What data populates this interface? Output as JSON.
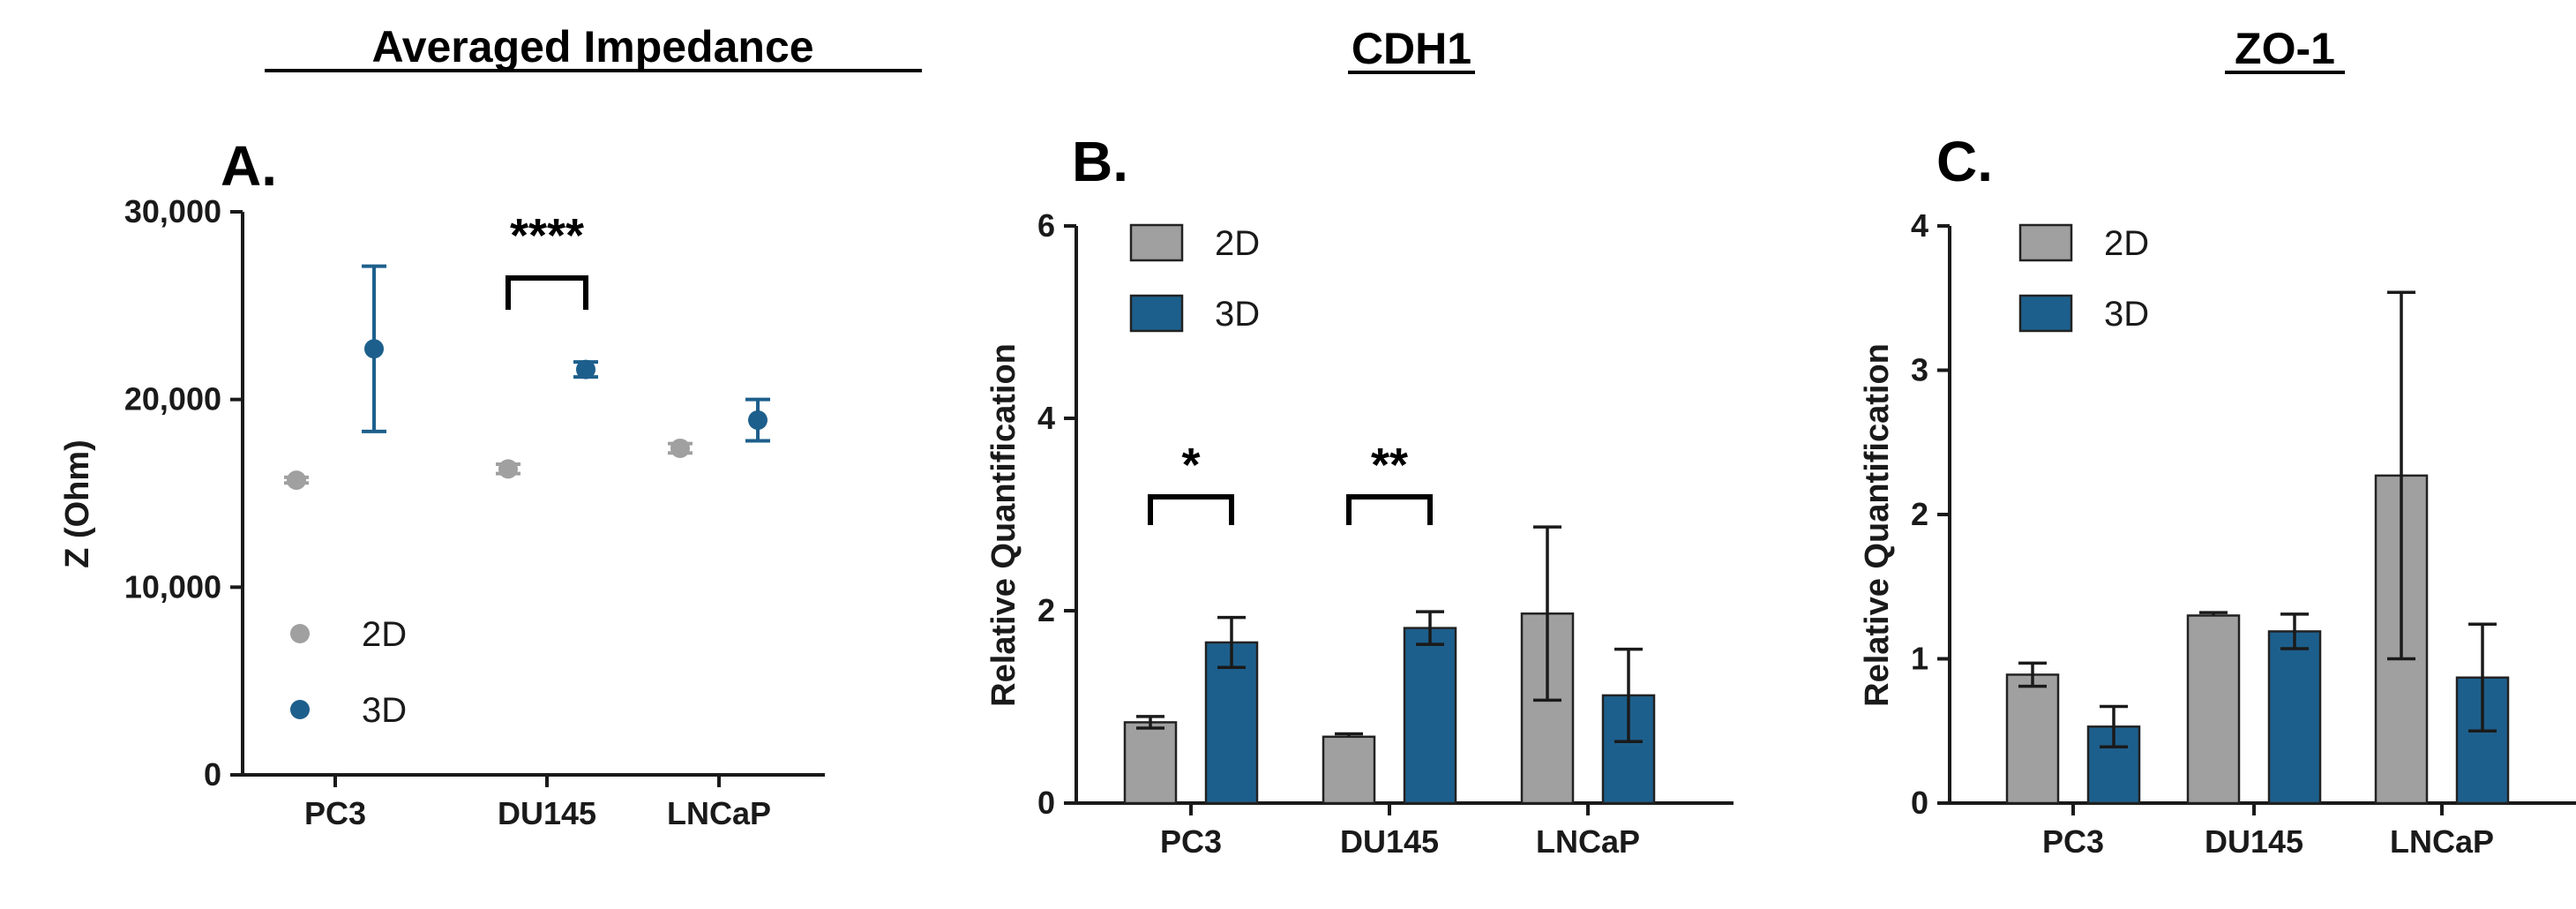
{
  "colors": {
    "2D": "#a0a0a0",
    "3D": "#1d5f8c",
    "axis": "#1a1a1a"
  },
  "chart_data": [
    {
      "type": "scatter",
      "panel_label": "A.",
      "title": "Averaged Impedance",
      "xlabel": "",
      "ylabel": "Z (Ohm)",
      "ylim": [
        0,
        30000
      ],
      "yticks": [
        0,
        10000,
        20000,
        30000
      ],
      "ytick_labels": [
        "0",
        "10,000",
        "20,000",
        "30,000"
      ],
      "categories": [
        "PC3",
        "DU145",
        "LNCaP"
      ],
      "series": [
        {
          "name": "2D",
          "values": [
            15700,
            16300,
            17400
          ],
          "errors": [
            150,
            250,
            250
          ]
        },
        {
          "name": "3D",
          "values": [
            22700,
            21600,
            18900
          ],
          "errors": [
            4400,
            400,
            1100
          ]
        }
      ],
      "legend": {
        "position": "bottom-left",
        "entries": [
          "2D",
          "3D"
        ]
      },
      "annotations": [
        {
          "text": "****",
          "category": "DU145"
        }
      ]
    },
    {
      "type": "bar",
      "panel_label": "B.",
      "title": "CDH1",
      "xlabel": "",
      "ylabel": "Relative Quantification",
      "ylim": [
        0,
        6
      ],
      "yticks": [
        0,
        2,
        4,
        6
      ],
      "ytick_labels": [
        "0",
        "2",
        "4",
        "6"
      ],
      "categories": [
        "PC3",
        "DU145",
        "LNCaP"
      ],
      "series": [
        {
          "name": "2D",
          "values": [
            0.84,
            0.69,
            1.97
          ],
          "errors": [
            0.06,
            0.03,
            0.9
          ]
        },
        {
          "name": "3D",
          "values": [
            1.67,
            1.82,
            1.12
          ],
          "errors": [
            0.26,
            0.17,
            0.48
          ]
        }
      ],
      "legend": {
        "position": "top-left",
        "entries": [
          "2D",
          "3D"
        ]
      },
      "annotations": [
        {
          "text": "*",
          "category": "PC3"
        },
        {
          "text": "**",
          "category": "DU145"
        }
      ]
    },
    {
      "type": "bar",
      "panel_label": "C.",
      "title": "ZO-1",
      "xlabel": "",
      "ylabel": "Relative Quantification",
      "ylim": [
        0,
        4
      ],
      "yticks": [
        0,
        1,
        2,
        3,
        4
      ],
      "ytick_labels": [
        "0",
        "1",
        "2",
        "3",
        "4"
      ],
      "categories": [
        "PC3",
        "DU145",
        "LNCaP"
      ],
      "series": [
        {
          "name": "2D",
          "values": [
            0.89,
            1.3,
            2.27
          ],
          "errors": [
            0.08,
            0.02,
            1.27
          ]
        },
        {
          "name": "3D",
          "values": [
            0.53,
            1.19,
            0.87
          ],
          "errors": [
            0.14,
            0.12,
            0.37
          ]
        }
      ],
      "legend": {
        "position": "top-left",
        "entries": [
          "2D",
          "3D"
        ]
      },
      "annotations": []
    }
  ]
}
